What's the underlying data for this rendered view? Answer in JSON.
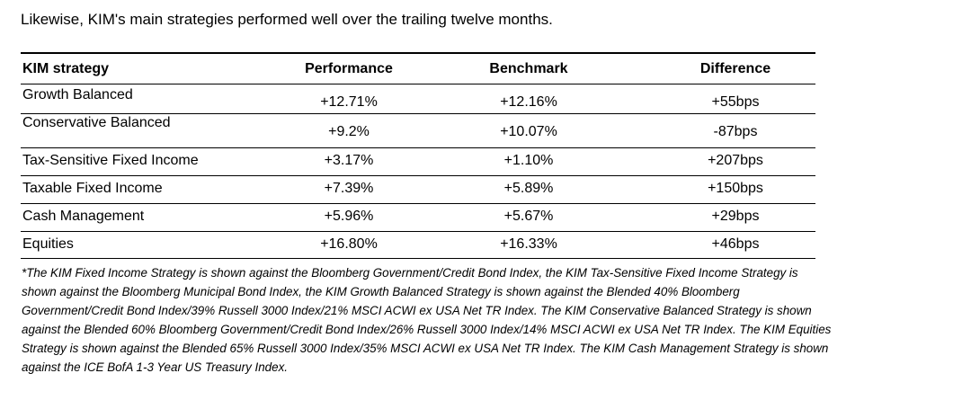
{
  "intro_text": "Likewise, KIM's main strategies performed well over the trailing twelve months.",
  "table": {
    "headers": [
      "KIM strategy",
      "Performance",
      "Benchmark",
      "Difference"
    ],
    "rows": [
      [
        "Growth Balanced",
        "+12.71%",
        "+12.16%",
        "+55bps"
      ],
      [
        "Conservative Balanced",
        "+9.2%",
        "+10.07%",
        "-87bps"
      ],
      [
        "Tax-Sensitive Fixed Income",
        "+3.17%",
        "+1.10%",
        "+207bps"
      ],
      [
        "Taxable Fixed Income",
        "+7.39%",
        "+5.89%",
        "+150bps"
      ],
      [
        "Cash Management",
        "+5.96%",
        "+5.67%",
        "+29bps"
      ],
      [
        "Equities",
        "+16.80%",
        "+16.33%",
        "+46bps"
      ]
    ]
  },
  "footnote": {
    "lines": [
      "*The KIM Fixed Income Strategy is shown against the Bloomberg Government/Credit Bond Index, the KIM Tax-Sensitive Fixed Income Strategy is",
      "shown against the Bloomberg Municipal Bond Index, the KIM Growth Balanced Strategy is shown against the Blended 40% Bloomberg",
      "Government/Credit Bond Index/39% Russell 3000 Index/21% MSCI ACWI ex USA Net TR Index.  The KIM Conservative Balanced Strategy is shown",
      "against the Blended 60% Bloomberg Government/Credit Bond Index/26% Russell 3000 Index/14% MSCI ACWI ex USA Net TR Index. The KIM Equities",
      "Strategy is shown against the Blended 65% Russell 3000 Index/35% MSCI ACWI ex USA Net TR Index.  The KIM Cash Management Strategy is shown",
      "against the ICE BofA 1-3 Year US Treasury Index."
    ]
  }
}
